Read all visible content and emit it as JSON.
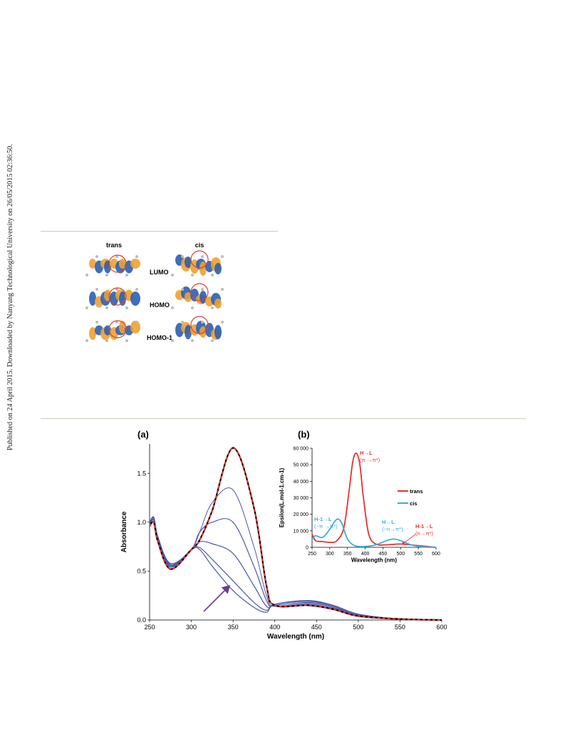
{
  "side_note": "Published on 24 April 2015. Downloaded by Nanyang Technological University on 26/05/2015 02:36:50.",
  "orbitals": {
    "columns": [
      "trans",
      "cis"
    ],
    "rows": [
      "LUMO",
      "HOMO",
      "HOMO-1"
    ],
    "colors": {
      "lobe_a": "#2a5fb0",
      "lobe_b": "#f0a030",
      "circle": "#e0403a"
    }
  },
  "panel_a": {
    "label": "(a)"
  },
  "panel_b": {
    "label": "(b)",
    "legend": [
      {
        "name": "trans",
        "color": "#e8312f"
      },
      {
        "name": "cis",
        "color": "#35aee0"
      }
    ],
    "annotations": {
      "trans_hl": {
        "line1": "H→L",
        "line2": "(π →π*)"
      },
      "cis_h1l": {
        "line1": "H-1→L",
        "line2": "(~π →π*)"
      },
      "cis_hl": {
        "line1": "H→L",
        "line2": "(~n→π*)"
      },
      "trans_h1l": {
        "line1": "H-1→L",
        "line2": "(n→π*)"
      }
    }
  },
  "chart_data": [
    {
      "type": "line",
      "title": "(a)",
      "xlabel": "Wavelength (nm)",
      "ylabel": "Absorbance",
      "xlim": [
        250,
        600
      ],
      "ylim": [
        0,
        1.8
      ],
      "xticks": [
        250,
        300,
        350,
        400,
        450,
        500,
        550,
        600
      ],
      "yticks": [
        0.0,
        0.5,
        1.0,
        1.5
      ],
      "x": [
        250,
        255,
        260,
        275,
        300,
        310,
        325,
        350,
        375,
        390,
        400,
        440,
        470,
        500,
        550,
        600
      ],
      "series": [
        {
          "values": [
            1.0,
            1.05,
            0.85,
            0.58,
            0.72,
            0.9,
            1.2,
            1.33,
            0.75,
            0.25,
            0.14,
            0.16,
            0.12,
            0.05,
            0.01,
            0.0
          ]
        },
        {
          "values": [
            1.0,
            1.05,
            0.85,
            0.57,
            0.72,
            0.9,
            1.0,
            1.0,
            0.55,
            0.2,
            0.14,
            0.17,
            0.13,
            0.05,
            0.01,
            0.0
          ]
        },
        {
          "values": [
            1.0,
            1.04,
            0.84,
            0.56,
            0.72,
            0.8,
            0.78,
            0.68,
            0.35,
            0.14,
            0.15,
            0.18,
            0.14,
            0.05,
            0.01,
            0.0
          ]
        },
        {
          "values": [
            0.98,
            1.03,
            0.83,
            0.55,
            0.72,
            0.74,
            0.62,
            0.4,
            0.18,
            0.1,
            0.16,
            0.19,
            0.15,
            0.06,
            0.01,
            0.0
          ]
        },
        {
          "values": [
            0.97,
            1.02,
            0.82,
            0.54,
            0.72,
            0.72,
            0.55,
            0.3,
            0.13,
            0.08,
            0.16,
            0.2,
            0.15,
            0.06,
            0.01,
            0.0
          ]
        },
        {
          "values": [
            0.96,
            1.0,
            0.8,
            0.52,
            0.72,
            0.82,
            1.12,
            1.76,
            1.15,
            0.35,
            0.15,
            0.15,
            0.11,
            0.04,
            0.01,
            0.0
          ]
        }
      ],
      "style": {
        "grid": false,
        "line_color": "#4a58a8",
        "final_line": "dashed red/black"
      }
    },
    {
      "type": "line",
      "title": "(b)",
      "xlabel": "Wavelength (nm)",
      "ylabel": "Epsilon(L.mol-1.cm-1)",
      "xlim": [
        250,
        600
      ],
      "ylim": [
        0,
        60000
      ],
      "xticks": [
        250,
        300,
        350,
        400,
        450,
        500,
        550,
        600
      ],
      "yticks": [
        0,
        10000,
        20000,
        30000,
        40000,
        50000,
        60000
      ],
      "ytick_labels": [
        "0",
        "10 000",
        "20 000",
        "30 000",
        "40 000",
        "50 000",
        "60 000"
      ],
      "legend_position": "right",
      "series": [
        {
          "name": "trans",
          "x": [
            250,
            260,
            280,
            300,
            320,
            340,
            355,
            365,
            375,
            385,
            395,
            410,
            430,
            460,
            500,
            550,
            600
          ],
          "values": [
            8000,
            4000,
            3500,
            3000,
            4000,
            12000,
            35000,
            52000,
            57000,
            50000,
            30000,
            8000,
            2000,
            1500,
            2000,
            1000,
            0
          ]
        },
        {
          "name": "cis",
          "x": [
            250,
            260,
            280,
            300,
            315,
            325,
            335,
            350,
            370,
            400,
            430,
            460,
            480,
            500,
            530,
            560,
            600
          ],
          "values": [
            5000,
            7000,
            6000,
            11000,
            16000,
            17000,
            14000,
            5000,
            1000,
            500,
            1500,
            4000,
            5000,
            4000,
            1500,
            300,
            0
          ]
        }
      ]
    }
  ]
}
